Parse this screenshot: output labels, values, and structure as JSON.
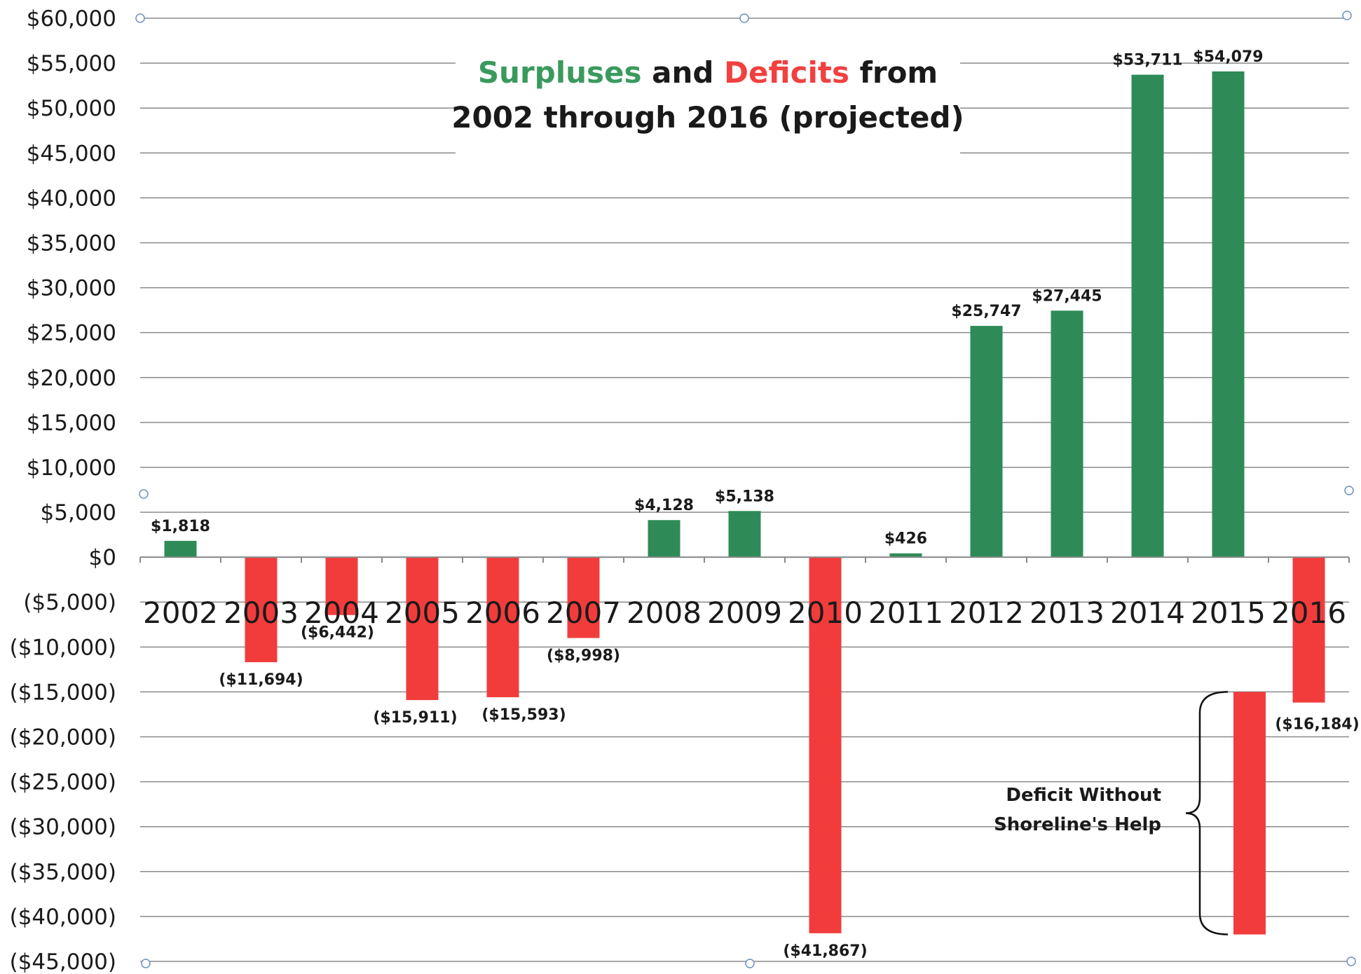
{
  "chart_data": {
    "type": "bar",
    "title": {
      "surpluses_word": "Surpluses",
      "and_word": "and",
      "deficits_word": "Deficits",
      "from_word": "from",
      "line2": "2002 through 2016 (projected)"
    },
    "xlabel": "",
    "ylabel": "",
    "ylim": [
      -45000,
      60000
    ],
    "ytick_step": 5000,
    "yticks": [
      "$60,000",
      "$55,000",
      "$50,000",
      "$45,000",
      "$40,000",
      "$35,000",
      "$30,000",
      "$25,000",
      "$20,000",
      "$15,000",
      "$10,000",
      "$5,000",
      "$0",
      "($5,000)",
      "($10,000)",
      "($15,000)",
      "($20,000)",
      "($25,000)",
      "($30,000)",
      "($35,000)",
      "($40,000)",
      "($45,000)"
    ],
    "categories": [
      "2002",
      "2003",
      "2004",
      "2005",
      "2006",
      "2007",
      "2008",
      "2009",
      "2010",
      "2011",
      "2012",
      "2013",
      "2014",
      "2015",
      "2016"
    ],
    "values": [
      1818,
      -11694,
      -6442,
      -15911,
      -15593,
      -8998,
      4128,
      5138,
      -41867,
      426,
      25747,
      27445,
      53711,
      54079,
      -16184
    ],
    "data_labels": [
      "$1,818",
      "($11,694)",
      "($6,442)",
      "($15,911)",
      "($15,593)",
      "($8,998)",
      "$4,128",
      "$5,138",
      "($41,867)",
      "$426",
      "$25,747",
      "$27,445",
      "$53,711",
      "$54,079",
      "($16,184)"
    ],
    "grid": true,
    "legend": "none",
    "colors": {
      "positive": "#2e8b57",
      "negative": "#f23c3c",
      "title_green": "#3a9a5e",
      "title_red": "#f24040",
      "title_dark": "#1a1a1a",
      "grid": "#8a8a8a"
    },
    "annotation": {
      "lines": [
        "Deficit Without",
        "Shoreline's Help"
      ],
      "bar_range": [
        -15000,
        -42000
      ]
    }
  }
}
